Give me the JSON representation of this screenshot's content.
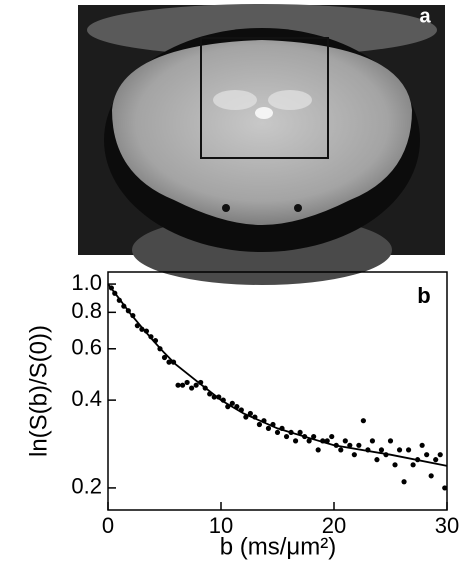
{
  "image_panel": {
    "label": "a"
  },
  "chart_data": {
    "type": "scatter",
    "panel_label": "b",
    "xlabel": "b (ms/μm²)",
    "ylabel": "ln(S(b)/S(0))",
    "xlim": [
      0,
      30
    ],
    "xticks": [
      0,
      10,
      20,
      30
    ],
    "ylim": [
      0.168,
      1.1
    ],
    "yscale": "log",
    "yticks": [
      0.2,
      0.4,
      0.6,
      0.8,
      {
        "value": 1,
        "label": "1.0"
      }
    ],
    "series": [
      {
        "type": "scatter",
        "color": "#000000",
        "x": [
          0.3,
          0.6,
          1.0,
          1.4,
          1.8,
          2.2,
          2.6,
          3.0,
          3.4,
          3.8,
          4.2,
          4.6,
          5.0,
          5.4,
          5.8,
          6.2,
          6.6,
          7.0,
          7.4,
          7.8,
          8.2,
          8.6,
          9.0,
          9.4,
          9.8,
          10.2,
          10.6,
          11.0,
          11.4,
          11.8,
          12.2,
          12.6,
          13.0,
          13.4,
          13.8,
          14.2,
          14.6,
          15.0,
          15.4,
          15.8,
          16.2,
          16.6,
          17.0,
          17.4,
          17.8,
          18.2,
          18.6,
          19.0,
          19.4,
          19.8,
          20.2,
          20.6,
          21.0,
          21.4,
          21.8,
          22.2,
          22.6,
          23.0,
          23.4,
          23.8,
          24.2,
          24.6,
          25.0,
          25.4,
          25.8,
          26.2,
          26.6,
          27.0,
          27.4,
          27.8,
          28.2,
          28.6,
          29.0,
          29.4,
          29.8
        ],
        "values": [
          0.97,
          0.93,
          0.88,
          0.84,
          0.81,
          0.78,
          0.72,
          0.7,
          0.69,
          0.66,
          0.64,
          0.6,
          0.56,
          0.54,
          0.54,
          0.45,
          0.45,
          0.46,
          0.44,
          0.45,
          0.46,
          0.44,
          0.42,
          0.41,
          0.41,
          0.4,
          0.38,
          0.39,
          0.38,
          0.37,
          0.35,
          0.36,
          0.35,
          0.33,
          0.34,
          0.32,
          0.33,
          0.31,
          0.32,
          0.3,
          0.31,
          0.29,
          0.31,
          0.3,
          0.29,
          0.3,
          0.27,
          0.29,
          0.29,
          0.3,
          0.28,
          0.27,
          0.29,
          0.28,
          0.26,
          0.28,
          0.34,
          0.27,
          0.29,
          0.25,
          0.27,
          0.26,
          0.29,
          0.24,
          0.27,
          0.21,
          0.27,
          0.24,
          0.25,
          0.28,
          0.26,
          0.22,
          0.25,
          0.26,
          0.2
        ]
      },
      {
        "type": "line",
        "color": "#000000",
        "x": [
          0,
          1,
          2,
          3,
          4,
          5,
          6,
          8,
          10,
          12,
          15,
          18,
          20,
          25,
          30
        ],
        "values": [
          1.0,
          0.89,
          0.79,
          0.71,
          0.64,
          0.58,
          0.53,
          0.46,
          0.4,
          0.36,
          0.32,
          0.295,
          0.28,
          0.26,
          0.238
        ]
      }
    ]
  }
}
